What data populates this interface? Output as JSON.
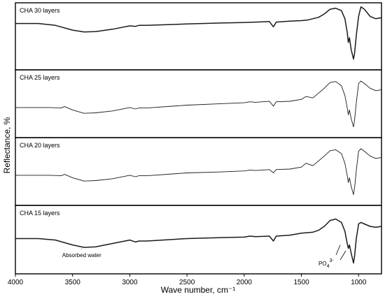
{
  "chart_data": {
    "type": "line",
    "xlabel": "Wave number, cm⁻¹",
    "ylabel": "Reflectance, %",
    "xlim": [
      4000,
      800
    ],
    "x_reversed": true,
    "xticks": [
      4000,
      3500,
      3000,
      2500,
      2000,
      1500,
      1000
    ],
    "y_tick_labels_shown": false,
    "grid": false,
    "layout": "stacked panels",
    "series": [
      {
        "name": "CHA 30 layers",
        "line_weight": "thick",
        "points": [
          [
            4000,
            0.8
          ],
          [
            3800,
            0.8
          ],
          [
            3650,
            0.76
          ],
          [
            3500,
            0.66
          ],
          [
            3400,
            0.62
          ],
          [
            3300,
            0.63
          ],
          [
            3150,
            0.68
          ],
          [
            3000,
            0.75
          ],
          [
            2950,
            0.74
          ],
          [
            2920,
            0.76
          ],
          [
            2850,
            0.76
          ],
          [
            2500,
            0.79
          ],
          [
            2200,
            0.81
          ],
          [
            2000,
            0.82
          ],
          [
            1900,
            0.83
          ],
          [
            1780,
            0.84
          ],
          [
            1745,
            0.73
          ],
          [
            1720,
            0.83
          ],
          [
            1600,
            0.85
          ],
          [
            1500,
            0.86
          ],
          [
            1450,
            0.87
          ],
          [
            1350,
            0.93
          ],
          [
            1300,
            1.0
          ],
          [
            1250,
            1.1
          ],
          [
            1200,
            1.12
          ],
          [
            1150,
            1.07
          ],
          [
            1120,
            0.9
          ],
          [
            1100,
            0.62
          ],
          [
            1090,
            0.4
          ],
          [
            1080,
            0.5
          ],
          [
            1065,
            0.25
          ],
          [
            1045,
            0.05
          ],
          [
            1035,
            0.18
          ],
          [
            1020,
            0.55
          ],
          [
            1000,
            0.95
          ],
          [
            980,
            1.15
          ],
          [
            950,
            1.1
          ],
          [
            900,
            0.95
          ],
          [
            850,
            0.9
          ],
          [
            800,
            0.92
          ]
        ]
      },
      {
        "name": "CHA 25 layers",
        "line_weight": "thin",
        "points": [
          [
            4000,
            0.45
          ],
          [
            3700,
            0.45
          ],
          [
            3600,
            0.44
          ],
          [
            3570,
            0.47
          ],
          [
            3500,
            0.4
          ],
          [
            3400,
            0.33
          ],
          [
            3300,
            0.34
          ],
          [
            3150,
            0.38
          ],
          [
            3000,
            0.45
          ],
          [
            2950,
            0.42
          ],
          [
            2920,
            0.44
          ],
          [
            2850,
            0.44
          ],
          [
            2500,
            0.5
          ],
          [
            2200,
            0.53
          ],
          [
            2000,
            0.55
          ],
          [
            1950,
            0.57
          ],
          [
            1900,
            0.56
          ],
          [
            1780,
            0.58
          ],
          [
            1745,
            0.48
          ],
          [
            1720,
            0.57
          ],
          [
            1600,
            0.58
          ],
          [
            1500,
            0.62
          ],
          [
            1460,
            0.68
          ],
          [
            1400,
            0.65
          ],
          [
            1350,
            0.75
          ],
          [
            1300,
            0.85
          ],
          [
            1250,
            0.97
          ],
          [
            1200,
            0.99
          ],
          [
            1150,
            0.9
          ],
          [
            1120,
            0.7
          ],
          [
            1100,
            0.45
          ],
          [
            1090,
            0.3
          ],
          [
            1080,
            0.4
          ],
          [
            1065,
            0.22
          ],
          [
            1045,
            0.05
          ],
          [
            1035,
            0.2
          ],
          [
            1020,
            0.55
          ],
          [
            1000,
            0.95
          ],
          [
            980,
            1.0
          ],
          [
            950,
            0.95
          ],
          [
            900,
            0.85
          ],
          [
            850,
            0.8
          ],
          [
            800,
            0.82
          ]
        ]
      },
      {
        "name": "CHA 20 layers",
        "line_weight": "thin",
        "points": [
          [
            4000,
            0.45
          ],
          [
            3700,
            0.45
          ],
          [
            3600,
            0.44
          ],
          [
            3570,
            0.47
          ],
          [
            3500,
            0.4
          ],
          [
            3400,
            0.33
          ],
          [
            3300,
            0.34
          ],
          [
            3150,
            0.38
          ],
          [
            3000,
            0.45
          ],
          [
            2950,
            0.42
          ],
          [
            2920,
            0.44
          ],
          [
            2850,
            0.44
          ],
          [
            2500,
            0.5
          ],
          [
            2200,
            0.52
          ],
          [
            2000,
            0.54
          ],
          [
            1950,
            0.56
          ],
          [
            1900,
            0.55
          ],
          [
            1780,
            0.57
          ],
          [
            1745,
            0.5
          ],
          [
            1720,
            0.57
          ],
          [
            1600,
            0.58
          ],
          [
            1500,
            0.62
          ],
          [
            1460,
            0.7
          ],
          [
            1400,
            0.65
          ],
          [
            1350,
            0.75
          ],
          [
            1300,
            0.85
          ],
          [
            1250,
            0.96
          ],
          [
            1200,
            0.98
          ],
          [
            1150,
            0.9
          ],
          [
            1120,
            0.7
          ],
          [
            1100,
            0.45
          ],
          [
            1090,
            0.3
          ],
          [
            1080,
            0.4
          ],
          [
            1065,
            0.22
          ],
          [
            1045,
            0.05
          ],
          [
            1035,
            0.2
          ],
          [
            1020,
            0.55
          ],
          [
            1000,
            0.95
          ],
          [
            980,
            1.0
          ],
          [
            950,
            0.95
          ],
          [
            900,
            0.85
          ],
          [
            850,
            0.8
          ],
          [
            800,
            0.82
          ]
        ]
      },
      {
        "name": "CHA 15 layers",
        "line_weight": "thick",
        "points": [
          [
            4000,
            0.55
          ],
          [
            3800,
            0.55
          ],
          [
            3650,
            0.52
          ],
          [
            3500,
            0.42
          ],
          [
            3400,
            0.37
          ],
          [
            3300,
            0.38
          ],
          [
            3150,
            0.45
          ],
          [
            3000,
            0.52
          ],
          [
            2950,
            0.48
          ],
          [
            2920,
            0.5
          ],
          [
            2850,
            0.5
          ],
          [
            2500,
            0.55
          ],
          [
            2200,
            0.57
          ],
          [
            2000,
            0.58
          ],
          [
            1950,
            0.6
          ],
          [
            1900,
            0.59
          ],
          [
            1780,
            0.6
          ],
          [
            1745,
            0.5
          ],
          [
            1720,
            0.6
          ],
          [
            1600,
            0.62
          ],
          [
            1500,
            0.66
          ],
          [
            1400,
            0.68
          ],
          [
            1350,
            0.72
          ],
          [
            1300,
            0.8
          ],
          [
            1250,
            0.92
          ],
          [
            1200,
            0.95
          ],
          [
            1150,
            0.88
          ],
          [
            1120,
            0.7
          ],
          [
            1100,
            0.45
          ],
          [
            1090,
            0.35
          ],
          [
            1080,
            0.42
          ],
          [
            1065,
            0.25
          ],
          [
            1045,
            0.05
          ],
          [
            1035,
            0.2
          ],
          [
            1020,
            0.55
          ],
          [
            1000,
            0.85
          ],
          [
            980,
            0.88
          ],
          [
            950,
            0.85
          ],
          [
            900,
            0.8
          ],
          [
            850,
            0.78
          ],
          [
            800,
            0.8
          ]
        ]
      }
    ],
    "annotations": [
      {
        "text": "Absorbed water",
        "x": 3420,
        "series": "CHA 15 layers"
      },
      {
        "text": "PO4",
        "sub": "4",
        "sup": "3-",
        "x": 1075,
        "series": "CHA 15 layers"
      }
    ]
  },
  "colors": {
    "line": "#1a1a1a",
    "frame": "#000000",
    "background": "#ffffff"
  }
}
